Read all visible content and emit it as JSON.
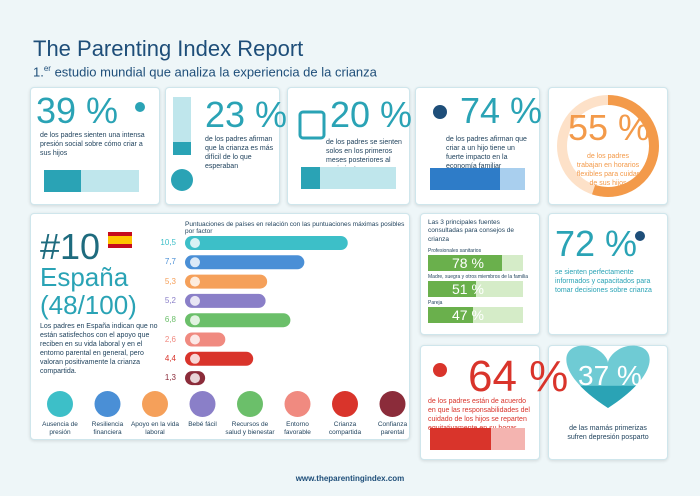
{
  "header": {
    "title": "The Parenting Index Report",
    "subtitle_prefix": "1.",
    "subtitle_sup": "er",
    "subtitle_rest": " estudio mundial que analiza la experiencia de la crianza"
  },
  "stats": [
    {
      "value": 39,
      "value_label": "39 %",
      "text": "de los padres sienten una intensa presión social sobre cómo criar a sus hijos"
    },
    {
      "value": 23,
      "value_label": "23 %",
      "text": "de los padres afirman que la crianza es más difícil de lo que esperaban"
    },
    {
      "value": 20,
      "value_label": "20 %",
      "text": "de los padres se sienten solos en los primeros meses posteriores al nacimiento"
    },
    {
      "value": 74,
      "value_label": "74 %",
      "text": "de los padres afirman que criar a un hijo tiene un fuerte impacto en la economía familiar"
    },
    {
      "value": 55,
      "value_label": "55 %",
      "text": "de los padres trabajan en horarios flexibles para cuidar de sus hijos"
    },
    {
      "value": 72,
      "value_label": "72 %",
      "text": "se sienten perfectamente informados y capacitados para tomar decisiones sobre crianza"
    },
    {
      "value": 64,
      "value_label": "64 %",
      "text": "de los padres están de acuerdo en que las responsabilidades del cuidado de los hijos se reparten equitativamente en su hogar"
    },
    {
      "value": 37,
      "value_label": "37 %",
      "text": "de las mamás primerizas sufren depresión posparto"
    }
  ],
  "ranking": {
    "rank": "#10",
    "country": "España",
    "score": "(48/100)",
    "note": "Los padres en España indican que no están satisfechos con el apoyo que reciben en su vida laboral y en el entorno parental en general, pero valoran positivamente la crianza compartida."
  },
  "chart_data": {
    "type": "bar",
    "orientation": "horizontal",
    "title": "Puntuaciones de países en relación con las puntuaciones máximas posibles por factor",
    "categories": [
      "Ausencia de presión",
      "Resiliencia financiera",
      "Apoyo en la vida laboral",
      "Bebé fácil",
      "Recursos de salud y bienestar",
      "Entorno favorable",
      "Crianza compartida",
      "Confianza parental"
    ],
    "values": [
      10.5,
      7.7,
      5.3,
      5.2,
      6.8,
      2.6,
      4.4,
      1.3
    ],
    "value_labels": [
      "10,5",
      "7,7",
      "5,3",
      "5,2",
      "6,8",
      "2,6",
      "4,4",
      "1,3"
    ],
    "colors": [
      "#3dbfc8",
      "#4a8fd6",
      "#f5a05a",
      "#8a7fc8",
      "#6bbf6a",
      "#f08a80",
      "#d9342b",
      "#8b2c3a"
    ]
  },
  "sources": {
    "title": "Las 3 principales fuentes consultadas para consejos de crianza",
    "items": [
      {
        "label": "Profesionales sanitarios",
        "value": 78,
        "value_label": "78 %"
      },
      {
        "label": "Madre, suegra y otros miembros de la familia",
        "value": 51,
        "value_label": "51 %"
      },
      {
        "label": "Pareja",
        "value": 47,
        "value_label": "47 %"
      }
    ]
  },
  "footer": "www.theparentingindex.com"
}
